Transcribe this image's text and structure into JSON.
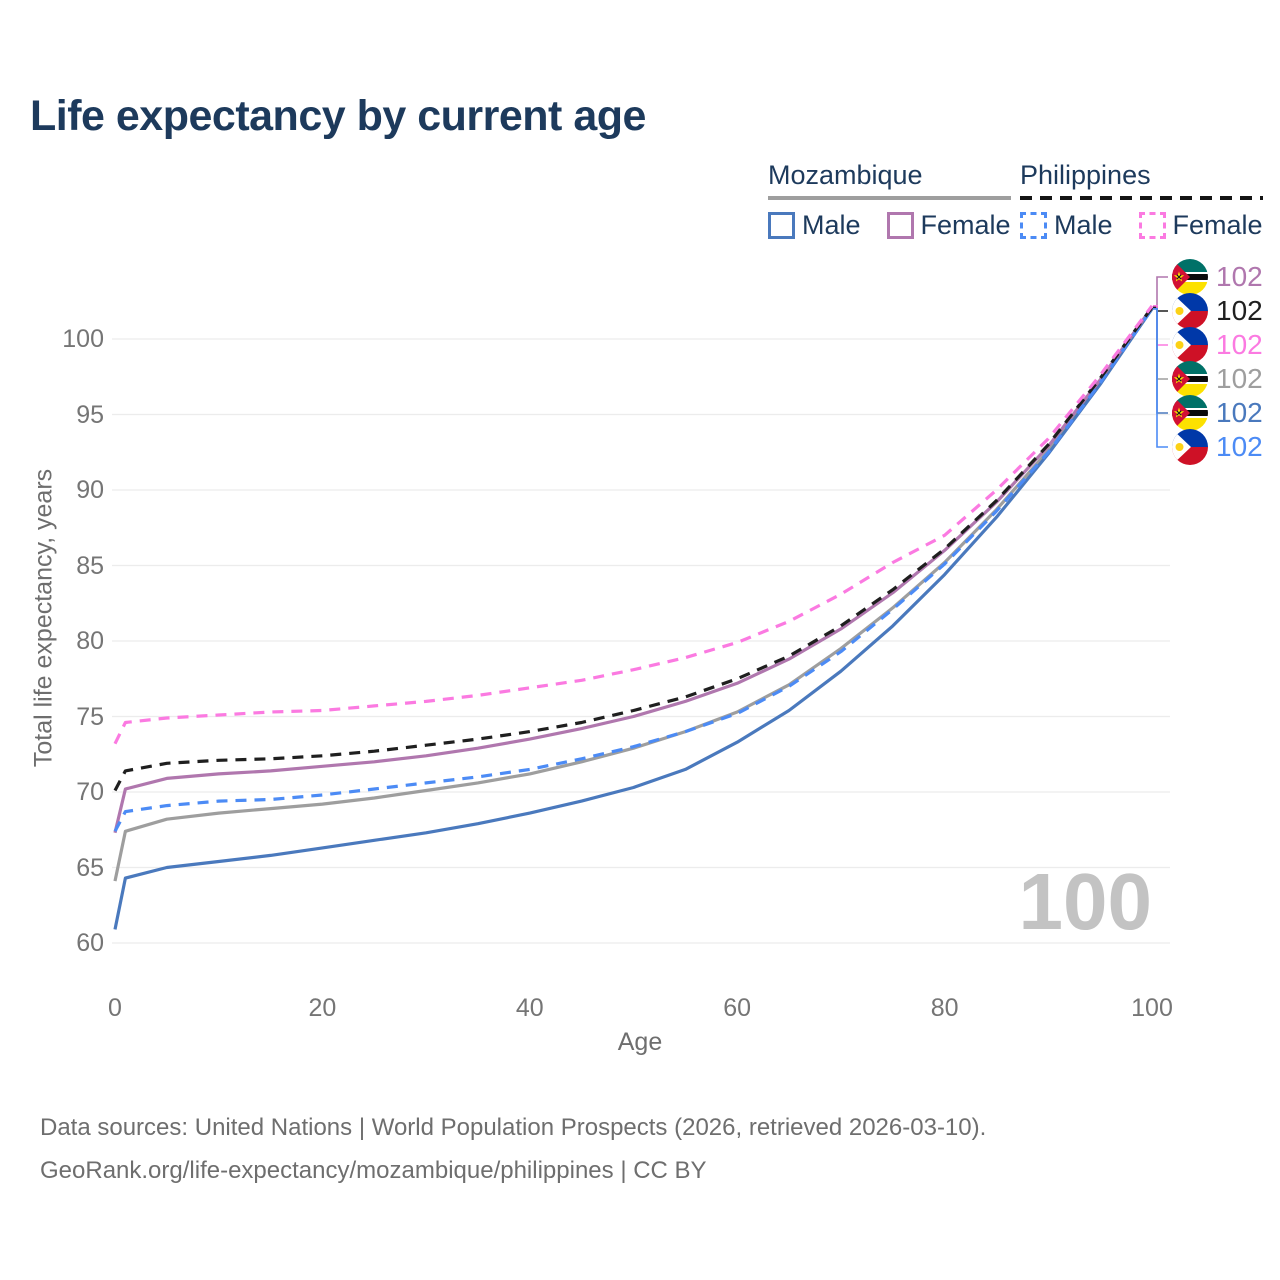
{
  "title": "Life expectancy by current age",
  "legend": {
    "groups": [
      {
        "title": "Mozambique",
        "line_style": "solid",
        "items": [
          {
            "label": "Male",
            "series": "moz_male"
          },
          {
            "label": "Female",
            "series": "moz_female"
          }
        ]
      },
      {
        "title": "Philippines",
        "line_style": "dashed",
        "items": [
          {
            "label": "Male",
            "series": "phl_male"
          },
          {
            "label": "Female",
            "series": "phl_female"
          }
        ]
      }
    ]
  },
  "watermark": "100",
  "footer": {
    "line1": "Data sources: United Nations | World Population Prospects (2026, retrieved 2026-03-10).",
    "line2": "GeoRank.org/life-expectancy/mozambique/philippines | CC BY"
  },
  "colors": {
    "title_text": "#1d3a5c",
    "axis_text": "#757575",
    "grid": "#ececec",
    "watermark": "#c3c3c3"
  },
  "icons": {
    "mozambique": "mozambique-flag-icon",
    "philippines": "philippines-flag-icon"
  },
  "chart_data": {
    "type": "line",
    "title": "Life expectancy by current age",
    "xlabel": "Age",
    "ylabel": "Total life expectancy, years",
    "xlim": [
      0,
      100
    ],
    "ylim": [
      60,
      103
    ],
    "x_ticks": [
      0,
      20,
      40,
      60,
      80,
      100
    ],
    "y_ticks": [
      60,
      65,
      70,
      75,
      80,
      85,
      90,
      95,
      100
    ],
    "grid": "horizontal",
    "legend_position": "top-right",
    "x": [
      0,
      1,
      5,
      10,
      15,
      20,
      25,
      30,
      35,
      40,
      45,
      50,
      55,
      60,
      65,
      70,
      75,
      80,
      85,
      90,
      95,
      100
    ],
    "series": [
      {
        "key": "moz_both",
        "name": "Mozambique",
        "country": "Mozambique",
        "sex": "Both",
        "color": "#9e9e9e",
        "dash": false,
        "flag": "mozambique",
        "end_label": "102",
        "values": [
          64.1,
          67.4,
          68.2,
          68.6,
          68.9,
          69.2,
          69.6,
          70.1,
          70.6,
          71.2,
          72.0,
          72.9,
          74.0,
          75.3,
          77.1,
          79.5,
          82.2,
          85.2,
          88.7,
          92.6,
          97.1,
          102.0
        ]
      },
      {
        "key": "moz_male",
        "name": "Mozambique Male",
        "country": "Mozambique",
        "sex": "Male",
        "color": "#4a79bd",
        "dash": false,
        "flag": "mozambique",
        "end_label": "102",
        "values": [
          60.9,
          64.3,
          65.0,
          65.4,
          65.8,
          66.3,
          66.8,
          67.3,
          67.9,
          68.6,
          69.4,
          70.3,
          71.5,
          73.3,
          75.4,
          78.0,
          81.0,
          84.4,
          88.2,
          92.4,
          97.0,
          102.0
        ]
      },
      {
        "key": "moz_female",
        "name": "Mozambique Female",
        "country": "Mozambique",
        "sex": "Female",
        "color": "#b077ae",
        "dash": false,
        "flag": "mozambique",
        "end_label": "102",
        "values": [
          67.3,
          70.2,
          70.9,
          71.2,
          71.4,
          71.7,
          72.0,
          72.4,
          72.9,
          73.5,
          74.2,
          75.0,
          76.0,
          77.2,
          78.8,
          80.8,
          83.2,
          86.0,
          89.2,
          92.9,
          97.3,
          102.1
        ]
      },
      {
        "key": "phl_male",
        "name": "Philippines Male",
        "country": "Philippines",
        "sex": "Male",
        "color": "#4c8bf5",
        "dash": true,
        "flag": "philippines",
        "end_label": "102",
        "values": [
          67.4,
          68.7,
          69.1,
          69.4,
          69.5,
          69.8,
          70.2,
          70.6,
          71.0,
          71.5,
          72.2,
          73.0,
          74.0,
          75.2,
          77.0,
          79.3,
          82.1,
          85.1,
          88.6,
          92.5,
          97.1,
          102.0
        ]
      },
      {
        "key": "phl_both",
        "name": "Philippines",
        "country": "Philippines",
        "sex": "Both",
        "color": "#1f1f1f",
        "dash": true,
        "flag": "philippines",
        "end_label": "102",
        "values": [
          70.1,
          71.4,
          71.9,
          72.1,
          72.2,
          72.4,
          72.7,
          73.1,
          73.5,
          74.0,
          74.6,
          75.4,
          76.3,
          77.5,
          79.0,
          81.0,
          83.4,
          86.1,
          89.3,
          93.0,
          97.4,
          102.1
        ]
      },
      {
        "key": "phl_female",
        "name": "Philippines Female",
        "country": "Philippines",
        "sex": "Female",
        "color": "#fb7ae1",
        "dash": true,
        "flag": "philippines",
        "end_label": "102",
        "values": [
          73.2,
          74.6,
          74.9,
          75.1,
          75.3,
          75.4,
          75.7,
          76.0,
          76.4,
          76.9,
          77.4,
          78.1,
          78.9,
          79.9,
          81.3,
          83.1,
          85.2,
          87.0,
          90.0,
          93.4,
          97.6,
          102.2
        ]
      }
    ],
    "end_rows": [
      "moz_female",
      "phl_both",
      "phl_female",
      "moz_both",
      "moz_male",
      "phl_male"
    ]
  }
}
